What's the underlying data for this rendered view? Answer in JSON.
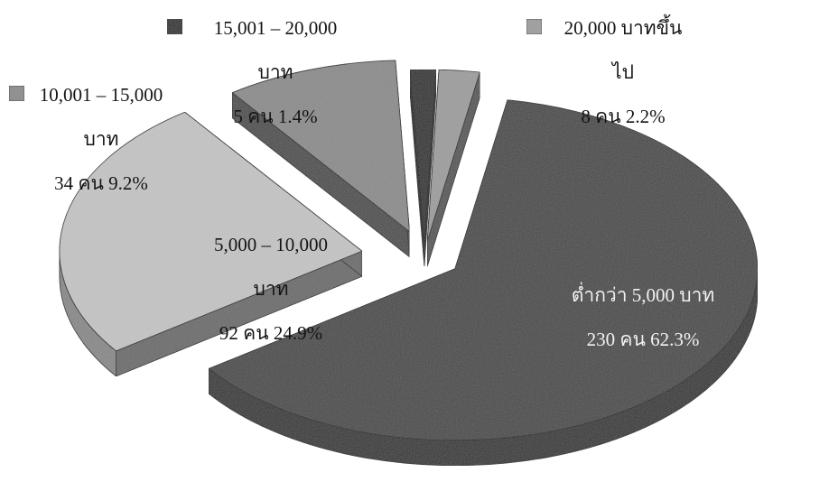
{
  "chart_data": {
    "type": "pie",
    "style": "3d-exploded",
    "slices": [
      {
        "legend": "ต่ำกว่า 5,000 บาท",
        "label_lines": [
          "ต่ำกว่า 5,000 บาท",
          "230 คน 62.3%"
        ],
        "count": 230,
        "percent": 62.3,
        "color": "#4a4a4a"
      },
      {
        "legend": "5,000 – 10,000 บาท",
        "label_lines": [
          "5,000 – 10,000",
          "บาท",
          "92 คน 24.9%"
        ],
        "count": 92,
        "percent": 24.9,
        "color": "#c4c4c4"
      },
      {
        "legend": "10,001 – 15,000 บาท",
        "label_lines": [
          "10,001 – 15,000",
          "บาท",
          "34 คน 9.2%"
        ],
        "count": 34,
        "percent": 9.2,
        "color": "#8c8c8c"
      },
      {
        "legend": "15,001 – 20,000 บาท",
        "label_lines": [
          "15,001 – 20,000",
          "บาท",
          "5 คน 1.4%"
        ],
        "count": 5,
        "percent": 1.4,
        "color": "#2e2e2e"
      },
      {
        "legend": "20,000 บาทขึ้นไป",
        "label_lines": [
          "20,000 บาทขึ้น",
          "ไป",
          "8 คน 2.2%"
        ],
        "count": 8,
        "percent": 2.2,
        "color": "#9e9e9e"
      }
    ]
  }
}
